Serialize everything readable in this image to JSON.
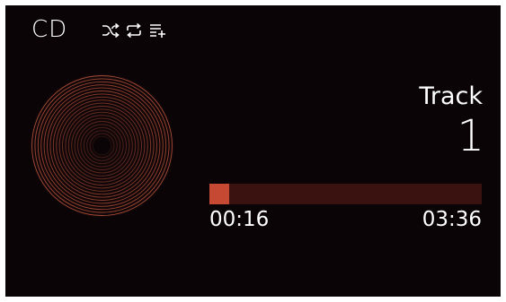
{
  "header": {
    "source": "CD",
    "icons": [
      "shuffle-icon",
      "repeat-icon",
      "playlist-add-icon"
    ]
  },
  "track": {
    "label": "Track",
    "number": "1"
  },
  "progress": {
    "elapsed": "00:16",
    "total": "03:36",
    "fraction": 0.074
  },
  "colors": {
    "background": "#0a0406",
    "accent": "#c64a33",
    "progress_track": "#3a1210",
    "disc_ring": "#c0573f",
    "text": "#ffffff"
  }
}
